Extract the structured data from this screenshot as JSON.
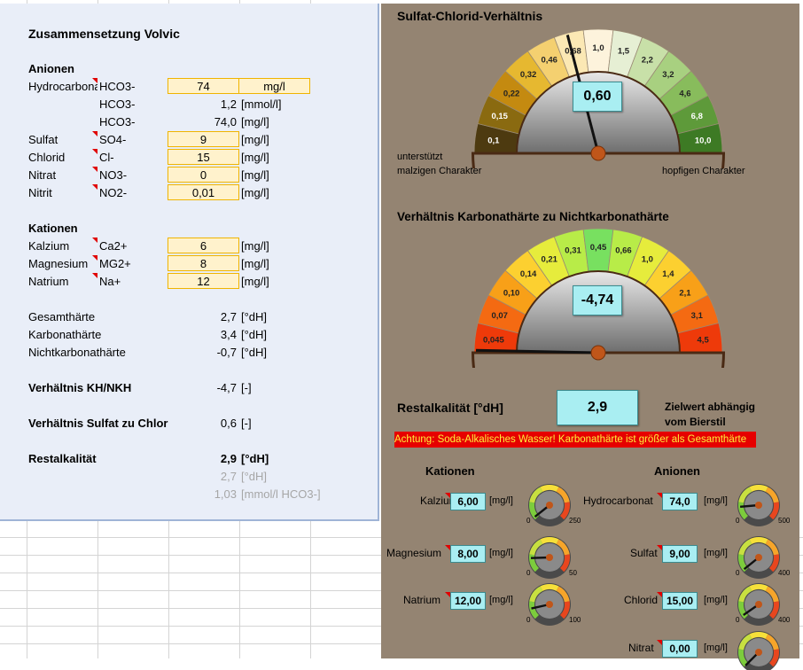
{
  "left": {
    "title": "Zusammensetzung Volvic",
    "anionen_heading": "Anionen",
    "hydro": {
      "label": "Hydrocarbonat",
      "formula": "HCO3-",
      "value": "74",
      "unit": "mg/l"
    },
    "hco3_mmol": {
      "formula": "HCO3-",
      "value": "1,2",
      "unit": "[mmol/l]"
    },
    "hco3_mg": {
      "formula": "HCO3-",
      "value": "74,0",
      "unit": "[mg/l]"
    },
    "sulfat": {
      "label": "Sulfat",
      "formula": "SO4-",
      "value": "9",
      "unit": "[mg/l]"
    },
    "chlorid": {
      "label": "Chlorid",
      "formula": "Cl-",
      "value": "15",
      "unit": "[mg/l]"
    },
    "nitrat": {
      "label": "Nitrat",
      "formula": "NO3-",
      "value": "0",
      "unit": "[mg/l]"
    },
    "nitrit": {
      "label": "Nitrit",
      "formula": "NO2-",
      "value": "0,01",
      "unit": "[mg/l]"
    },
    "kationen_heading": "Kationen",
    "kalzium": {
      "label": "Kalzium",
      "formula": "Ca2+",
      "value": "6",
      "unit": "[mg/l]"
    },
    "magnesium": {
      "label": "Magnesium",
      "formula": "MG2+",
      "value": "8",
      "unit": "[mg/l]"
    },
    "natrium": {
      "label": "Natrium",
      "formula": "Na+",
      "value": "12",
      "unit": "[mg/l]"
    },
    "gesamt": {
      "label": "Gesamthärte",
      "value": "2,7",
      "unit": "[°dH]"
    },
    "karbonat": {
      "label": "Karbonathärte",
      "value": "3,4",
      "unit": "[°dH]"
    },
    "nichtkarbonat": {
      "label": "Nichtkarbonathärte",
      "value": "-0,7",
      "unit": "[°dH]"
    },
    "kh_nkh": {
      "label": "Verhältnis KH/NKH",
      "value": "-4,7",
      "unit": "[-]"
    },
    "sulfat_chlor": {
      "label": "Verhältnis Sulfat zu Chlor",
      "value": "0,6",
      "unit": "[-]"
    },
    "restal": {
      "label": "Restalkalität",
      "value": "2,9",
      "unit": "[°dH]"
    },
    "restal_grey1": {
      "value": "2,7",
      "unit": "[°dH]"
    },
    "restal_grey2": {
      "value": "1,03",
      "unit": "[mmol/l HCO3-]"
    }
  },
  "right": {
    "gauge1_title": "Sulfat-Chlorid-Verhältnis",
    "gauge1_value": "0,60",
    "gauge1_needle_value": 0.6,
    "gauge1_labels": [
      "0,1",
      "0,15",
      "0,22",
      "0,32",
      "0,46",
      "0,68",
      "1,0",
      "1,5",
      "2,2",
      "3,2",
      "4,6",
      "6,8",
      "10,0"
    ],
    "gauge1_colors": [
      "#4d3a10",
      "#8a6a10",
      "#c48a10",
      "#e6b830",
      "#f4d070",
      "#fbe8b4",
      "#fdf3dc",
      "#e6efd4",
      "#c8e0a8",
      "#a8d080",
      "#88bc5c",
      "#5e9a3a",
      "#3d7a24"
    ],
    "gauge1_left_note_1": "unterstützt",
    "gauge1_left_note_2": "malzigen Charakter",
    "gauge1_right_note": "hopfigen Charakter",
    "gauge2_title": "Verhältnis Karbonathärte zu Nichtkarbonathärte",
    "gauge2_value": "-4,74",
    "gauge2_labels": [
      "0,045",
      "0,07",
      "0,10",
      "0,14",
      "0,21",
      "0,31",
      "0,45",
      "0,66",
      "1,0",
      "1,4",
      "2,1",
      "3,1",
      "4,5"
    ],
    "gauge2_colors": [
      "#ee3a0a",
      "#f46a12",
      "#f8a018",
      "#fcd030",
      "#e6ec3c",
      "#b8ec48",
      "#78e060",
      "#b8ec48",
      "#e6ec3c",
      "#fcd030",
      "#f8a018",
      "#f46a12",
      "#ee3a0a"
    ],
    "restal_label": "Restalkalität [°dH]",
    "restal_value": "2,9",
    "zielwert_1": "Zielwert abhängig",
    "zielwert_2": "vom Bierstil",
    "warning": "Achtung: Soda-Alkalisches Wasser! Karbonathärte ist größer als Gesamthärte",
    "kationen_heading": "Kationen",
    "anionen_heading": "Anionen",
    "unit": "[mg/l]",
    "mini": [
      {
        "label": "Kalzium",
        "value": "6,00",
        "max": "250",
        "min": "0",
        "level": 0.024
      },
      {
        "label": "Magnesium",
        "value": "8,00",
        "max": "50",
        "min": "0",
        "level": 0.16
      },
      {
        "label": "Natrium",
        "value": "12,00",
        "max": "100",
        "min": "0",
        "level": 0.12
      },
      {
        "label": "Hydrocarbonat",
        "value": "74,0",
        "max": "500",
        "min": "0",
        "level": 0.148
      },
      {
        "label": "Sulfat",
        "value": "9,00",
        "max": "400",
        "min": "0",
        "level": 0.0225
      },
      {
        "label": "Chlorid",
        "value": "15,00",
        "max": "400",
        "min": "0",
        "level": 0.0375
      },
      {
        "label": "Nitrat",
        "value": "0,00",
        "max": "",
        "min": "",
        "level": 0
      }
    ]
  }
}
